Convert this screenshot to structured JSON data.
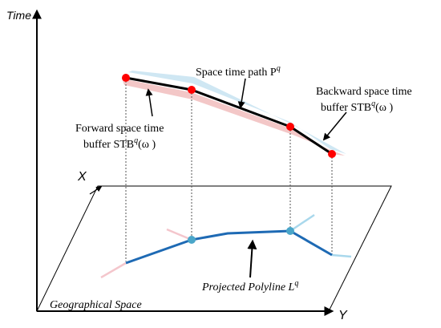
{
  "axes": {
    "time_label": "Time",
    "x_label": "X",
    "y_label": "Y"
  },
  "plane": {
    "label": "Geographical Space"
  },
  "labels": {
    "path_text": "Space time path P",
    "path_sup": "q",
    "backward_line1": "Backward space time",
    "backward_line2_a": "buffer STB",
    "backward_line2_sup": "q",
    "backward_line2_b": "(ω )",
    "forward_line1": "Forward space time",
    "forward_line2_a": "buffer STB",
    "forward_line2_sup": "q",
    "forward_line2_b": "(ω )",
    "polyline_text": "Projected Polyline L",
    "polyline_sup": "q"
  },
  "colors": {
    "path": "#000000",
    "path_point": "#ff0000",
    "forward_buffer": "#f2c4c4",
    "backward_buffer": "#cce6f2",
    "polyline": "#1e6ab4",
    "polyline_point": "#4aa6c9",
    "forward_ext": "#f4c6cc",
    "backward_ext": "#a9d8ec",
    "dashed": "#555555"
  }
}
